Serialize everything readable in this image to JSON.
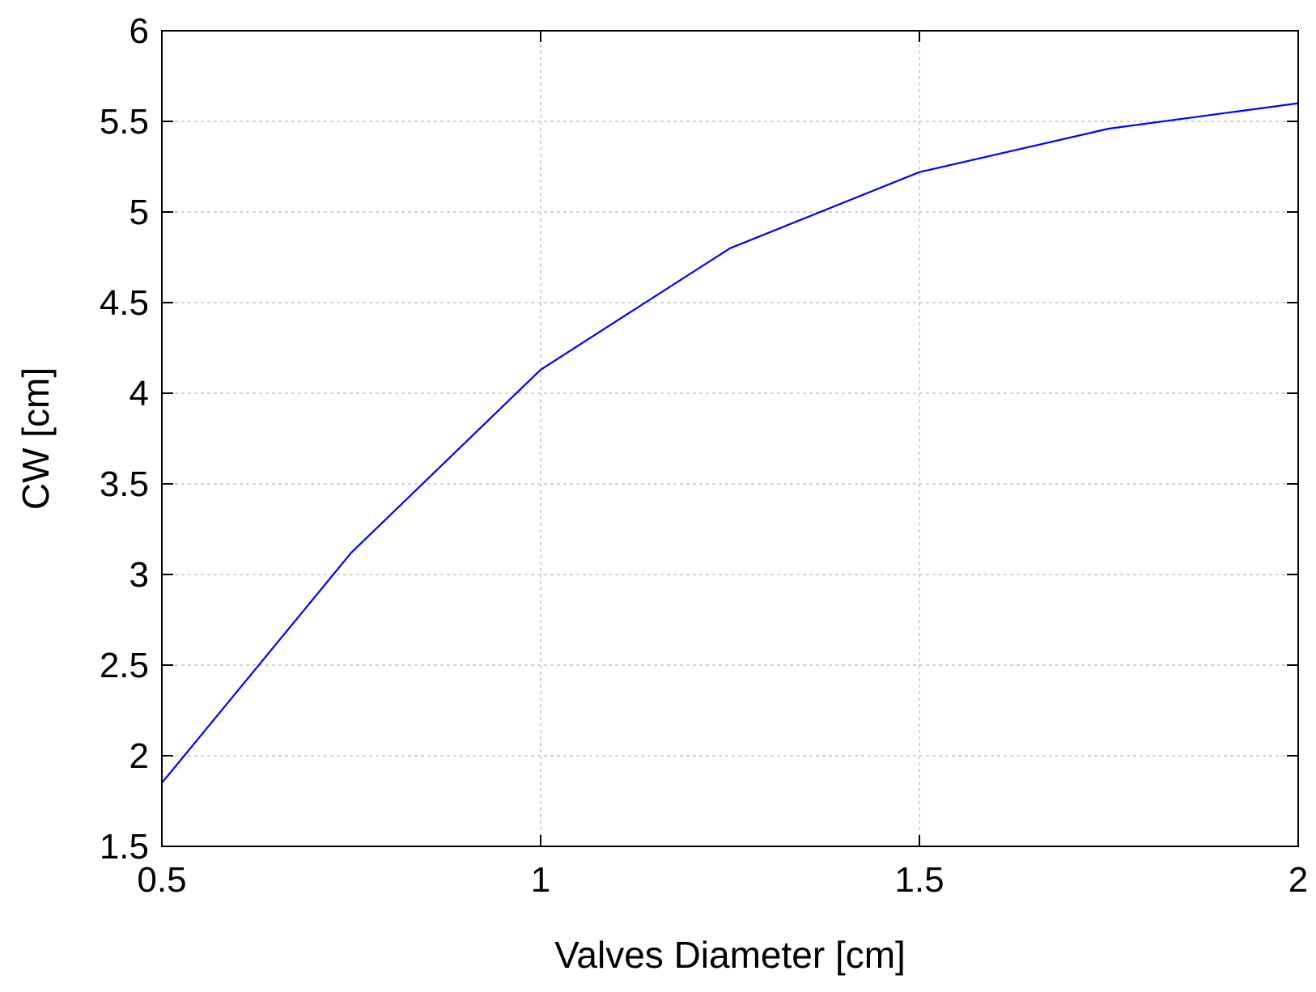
{
  "chart_data": {
    "type": "line",
    "title": "",
    "xlabel": "Valves Diameter [cm]",
    "ylabel": "CW [cm]",
    "xlim": [
      0.5,
      2
    ],
    "ylim": [
      1.5,
      6
    ],
    "xticks": [
      0.5,
      1,
      1.5,
      2
    ],
    "yticks": [
      1.5,
      2,
      2.5,
      3,
      3.5,
      4,
      4.5,
      5,
      5.5,
      6
    ],
    "xtick_labels": [
      "0.5",
      "1",
      "1.5",
      "2"
    ],
    "ytick_labels": [
      "1.5",
      "2",
      "2.5",
      "3",
      "3.5",
      "4",
      "4.5",
      "5",
      "5.5",
      "6"
    ],
    "grid": true,
    "legend": "none",
    "series": [
      {
        "color": "#0000ff",
        "x": [
          0.5,
          0.75,
          1.0,
          1.25,
          1.5,
          1.75,
          2.0
        ],
        "y": [
          1.85,
          3.12,
          4.13,
          4.8,
          5.22,
          5.46,
          5.6
        ]
      }
    ]
  }
}
